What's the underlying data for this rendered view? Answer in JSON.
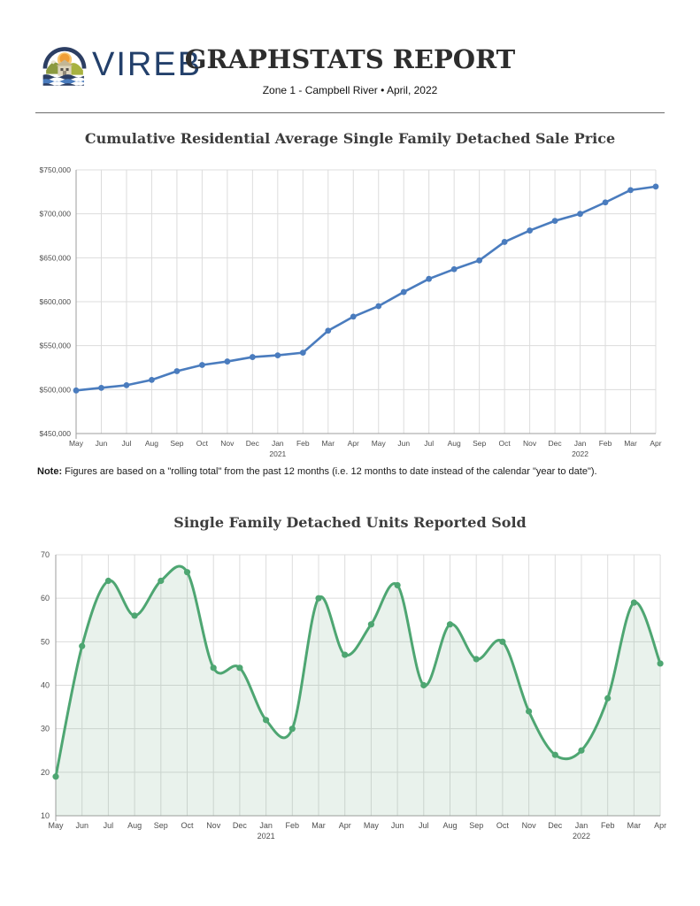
{
  "header": {
    "brand": "VIREB",
    "logo_icon": "vireb-sun-house-waves-badge",
    "title": "GRAPHSTATS REPORT",
    "subtitle": "Zone 1 - Campbell River  •  April, 2022"
  },
  "note": {
    "label": "Note:",
    "text": " Figures are based on a \"rolling total\" from the past 12 months (i.e. 12 months to date instead of the calendar \"year to date\")."
  },
  "colors": {
    "price_line": "#4a7cbe",
    "units_line": "#4ea672",
    "units_fill": "rgba(110,170,126,0.15)",
    "grid": "#dcdcdc",
    "axis": "#9e9e9e",
    "brand_navy": "#23406b",
    "title_gray": "#3d3d3d"
  },
  "chart_data": [
    {
      "type": "line",
      "title": "Cumulative Residential Average Single Family Detached Sale Price",
      "categories": [
        "May",
        "Jun",
        "Jul",
        "Aug",
        "Sep",
        "Oct",
        "Nov",
        "Dec",
        "Jan",
        "Feb",
        "Mar",
        "Apr",
        "May",
        "Jun",
        "Jul",
        "Aug",
        "Sep",
        "Oct",
        "Nov",
        "Dec",
        "Jan",
        "Feb",
        "Mar",
        "Apr"
      ],
      "year_labels": [
        {
          "index": 8,
          "label": "2021"
        },
        {
          "index": 20,
          "label": "2022"
        }
      ],
      "values": [
        499000,
        502000,
        505000,
        511000,
        521000,
        528000,
        532000,
        537000,
        539000,
        542000,
        567000,
        583000,
        595000,
        611000,
        626000,
        637000,
        647000,
        668000,
        681000,
        692000,
        700000,
        713000,
        727000,
        731000
      ],
      "xlabel": "",
      "ylabel": "",
      "ylim": [
        450000,
        750000
      ],
      "ytick_step": 50000,
      "ytick_prefix": "$",
      "grid": true,
      "legend": "none",
      "smooth": false,
      "area": false
    },
    {
      "type": "area",
      "title": "Single Family Detached Units Reported Sold",
      "categories": [
        "May",
        "Jun",
        "Jul",
        "Aug",
        "Sep",
        "Oct",
        "Nov",
        "Dec",
        "Jan",
        "Feb",
        "Mar",
        "Apr",
        "May",
        "Jun",
        "Jul",
        "Aug",
        "Sep",
        "Oct",
        "Nov",
        "Dec",
        "Jan",
        "Feb",
        "Mar",
        "Apr"
      ],
      "year_labels": [
        {
          "index": 8,
          "label": "2021"
        },
        {
          "index": 20,
          "label": "2022"
        }
      ],
      "values": [
        19,
        49,
        64,
        56,
        64,
        66,
        44,
        44,
        32,
        30,
        60,
        47,
        54,
        63,
        40,
        54,
        46,
        50,
        34,
        24,
        25,
        37,
        59,
        45
      ],
      "xlabel": "",
      "ylabel": "",
      "ylim": [
        10,
        70
      ],
      "ytick_step": 10,
      "ytick_prefix": "",
      "grid": true,
      "legend": "none",
      "smooth": true,
      "area": true
    }
  ]
}
